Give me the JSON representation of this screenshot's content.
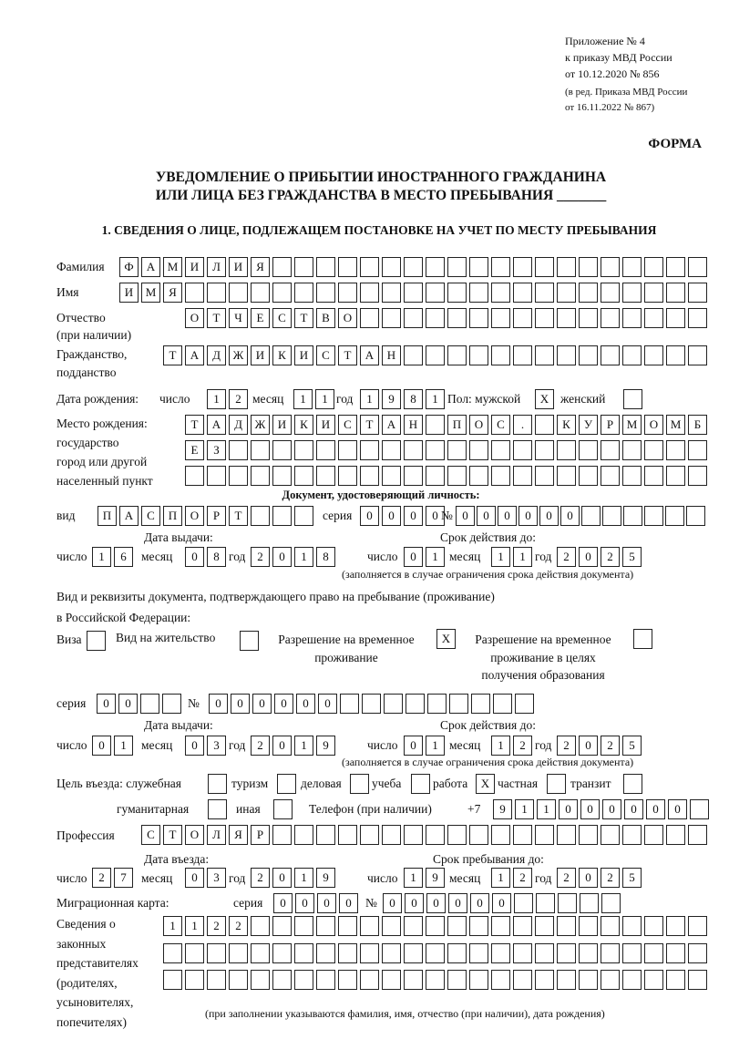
{
  "header": {
    "appendix": "Приложение № 4",
    "order": "к приказу МВД России",
    "date": "от 10.12.2020 № 856",
    "edit1": "(в ред. Приказа МВД России",
    "edit2": "от 16.11.2022 № 867)",
    "form": "ФОРМА",
    "title1": "УВЕДОМЛЕНИЕ О ПРИБЫТИИ ИНОСТРАННОГО ГРАЖДАНИНА",
    "title2": "ИЛИ ЛИЦА БЕЗ ГРАЖДАНСТВА В МЕСТО ПРЕБЫВАНИЯ _______",
    "section1": "1. СВЕДЕНИЯ О ЛИЦЕ, ПОДЛЕЖАЩЕМ ПОСТАНОВКЕ НА УЧЕТ ПО МЕСТУ ПРЕБЫВАНИЯ"
  },
  "labels": {
    "surname": "Фамилия",
    "name": "Имя",
    "patronymic": "Отчество",
    "patronymic2": "(при наличии)",
    "citizenship": "Гражданство,",
    "citizenship2": "подданство",
    "birth_date": "Дата рождения:",
    "day": "число",
    "month": "месяц",
    "year": "год",
    "sex": "Пол: мужской",
    "female": "женский",
    "birth_place1": "Место рождения:",
    "birth_place2": "государство",
    "birth_place3": "город или другой",
    "birth_place4": "населенный пункт",
    "id_doc": "Документ, удостоверяющий личность:",
    "kind": "вид",
    "series": "серия",
    "number": "№",
    "issue_date": "Дата выдачи:",
    "valid_until": "Срок действия до:",
    "valid_note": "(заполняется в случае ограничения срока действия документа)",
    "right_doc1": "Вид и реквизиты документа, подтверждающего право на пребывание (проживание)",
    "right_doc2": "в Российской Федерации:",
    "visa": "Виза",
    "residence": "Вид на жительство",
    "temp1": "Разрешение на временное",
    "temp2": "проживание",
    "edu1": "Разрешение на временное",
    "edu2": "проживание в целях",
    "edu3": "получения образования",
    "purpose": "Цель въезда: служебная",
    "tourism": "туризм",
    "business": "деловая",
    "study": "учеба",
    "work": "работа",
    "private": "частная",
    "transit": "транзит",
    "humanitarian": "гуманитарная",
    "other": "иная",
    "phone": "Телефон (при наличии)",
    "phone_prefix": "+7",
    "profession": "Профессия",
    "entry_date": "Дата въезда:",
    "stay_until": "Срок пребывания до:",
    "migration_card": "Миграционная карта:",
    "rep1": "Сведения о",
    "rep2": "законных",
    "rep3": "представителях",
    "rep4": "(родителях,",
    "rep5": "усыновителях,",
    "rep6": "попечителях)",
    "rep_note": "(при заполнении указываются фамилия, имя, отчество (при наличии), дата рождения)"
  },
  "fields": {
    "surname": "ФАМИЛИЯ",
    "name": "ИМЯ",
    "patronymic": "ОТЧЕСТВО",
    "citizenship": "ТАДЖИКИСТАН",
    "birth_day": "12",
    "birth_month": "11",
    "birth_year": "1981",
    "sex_male": "X",
    "sex_female": "",
    "birth_place_1": "ТАДЖИКИСТАН ПОС. КУРМОМБ",
    "birth_place_2": "ЕЗ",
    "birth_place_3": "",
    "id_kind": "ПАСПОРТ",
    "id_series": "0000",
    "id_number": "000000",
    "id_issue_day": "16",
    "id_issue_month": "08",
    "id_issue_year": "2018",
    "id_valid_day": "01",
    "id_valid_month": "11",
    "id_valid_year": "2025",
    "visa": "",
    "residence": "",
    "temp_residence": "X",
    "edu_residence": "",
    "right_series": "00",
    "right_number": "000000",
    "right_issue_day": "01",
    "right_issue_month": "03",
    "right_issue_year": "2019",
    "right_valid_day": "01",
    "right_valid_month": "12",
    "right_valid_year": "2025",
    "p_service": "",
    "p_tourism": "",
    "p_business": "",
    "p_study": "",
    "p_work": "X",
    "p_private": "",
    "p_transit": "",
    "p_humanitarian": "",
    "p_other": "",
    "phone": "911000000",
    "profession": "СТОЛЯР",
    "entry_day": "27",
    "entry_month": "03",
    "entry_year": "2019",
    "stay_day": "19",
    "stay_month": "12",
    "stay_year": "2025",
    "mc_series": "0000",
    "mc_number": "000000",
    "rep_1": "1122",
    "rep_2": "",
    "rep_3": ""
  }
}
